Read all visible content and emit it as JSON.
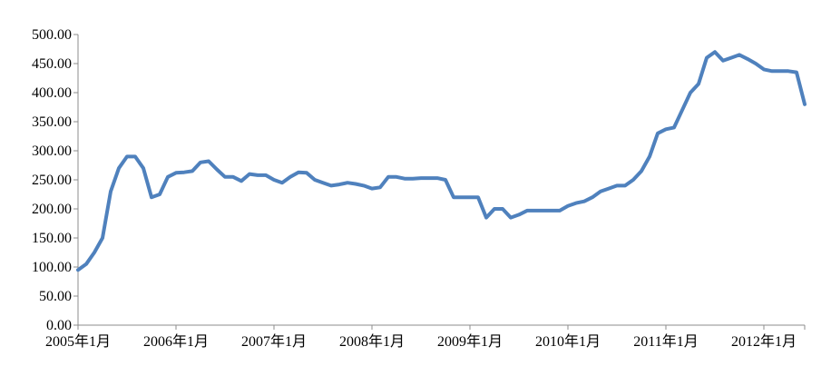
{
  "chart_data": {
    "type": "line",
    "title": "",
    "xlabel": "",
    "ylabel": "",
    "ylim": [
      0,
      500
    ],
    "yticks": [
      "0.00",
      "50.00",
      "100.00",
      "150.00",
      "200.00",
      "250.00",
      "300.00",
      "350.00",
      "400.00",
      "450.00",
      "500.00"
    ],
    "xticks": [
      "2005年1月",
      "2006年1月",
      "2007年1月",
      "2008年1月",
      "2009年1月",
      "2010年1月",
      "2011年1月",
      "2012年1月"
    ],
    "xlim": [
      "2005-01",
      "2012-06"
    ],
    "grid": false,
    "legend": "none",
    "line_color": "#4f81bd",
    "series": [
      {
        "x": [
          "2005-01",
          "2005-02",
          "2005-03",
          "2005-04",
          "2005-05",
          "2005-06",
          "2005-07",
          "2005-08",
          "2005-09",
          "2005-10",
          "2005-11",
          "2005-12",
          "2006-01",
          "2006-02",
          "2006-03",
          "2006-04",
          "2006-05",
          "2006-06",
          "2006-07",
          "2006-08",
          "2006-09",
          "2006-10",
          "2006-11",
          "2006-12",
          "2007-01",
          "2007-02",
          "2007-03",
          "2007-04",
          "2007-05",
          "2007-06",
          "2007-07",
          "2007-08",
          "2007-09",
          "2007-10",
          "2007-11",
          "2007-12",
          "2008-01",
          "2008-02",
          "2008-03",
          "2008-04",
          "2008-05",
          "2008-06",
          "2008-07",
          "2008-08",
          "2008-09",
          "2008-10",
          "2008-11",
          "2008-12",
          "2009-01",
          "2009-02",
          "2009-03",
          "2009-04",
          "2009-05",
          "2009-06",
          "2009-07",
          "2009-08",
          "2009-09",
          "2009-10",
          "2009-11",
          "2009-12",
          "2010-01",
          "2010-02",
          "2010-03",
          "2010-04",
          "2010-05",
          "2010-06",
          "2010-07",
          "2010-08",
          "2010-09",
          "2010-10",
          "2010-11",
          "2010-12",
          "2011-01",
          "2011-02",
          "2011-03",
          "2011-04",
          "2011-05",
          "2011-06",
          "2011-07",
          "2011-08",
          "2011-09",
          "2011-10",
          "2011-11",
          "2011-12",
          "2012-01",
          "2012-02",
          "2012-03",
          "2012-04",
          "2012-05",
          "2012-06"
        ],
        "values": [
          95,
          105,
          125,
          150,
          230,
          270,
          290,
          290,
          270,
          220,
          225,
          255,
          262,
          263,
          265,
          280,
          282,
          268,
          255,
          255,
          248,
          260,
          258,
          258,
          250,
          245,
          255,
          263,
          262,
          250,
          245,
          240,
          242,
          245,
          243,
          240,
          235,
          237,
          255,
          255,
          252,
          252,
          253,
          253,
          253,
          250,
          220,
          220,
          220,
          220,
          185,
          200,
          200,
          185,
          190,
          197,
          197,
          197,
          197,
          197,
          205,
          210,
          213,
          220,
          230,
          235,
          240,
          240,
          250,
          265,
          290,
          330,
          337,
          340,
          370,
          400,
          415,
          460,
          470,
          455,
          460,
          465,
          458,
          450,
          440,
          437,
          437,
          437,
          435,
          380
        ]
      }
    ]
  }
}
